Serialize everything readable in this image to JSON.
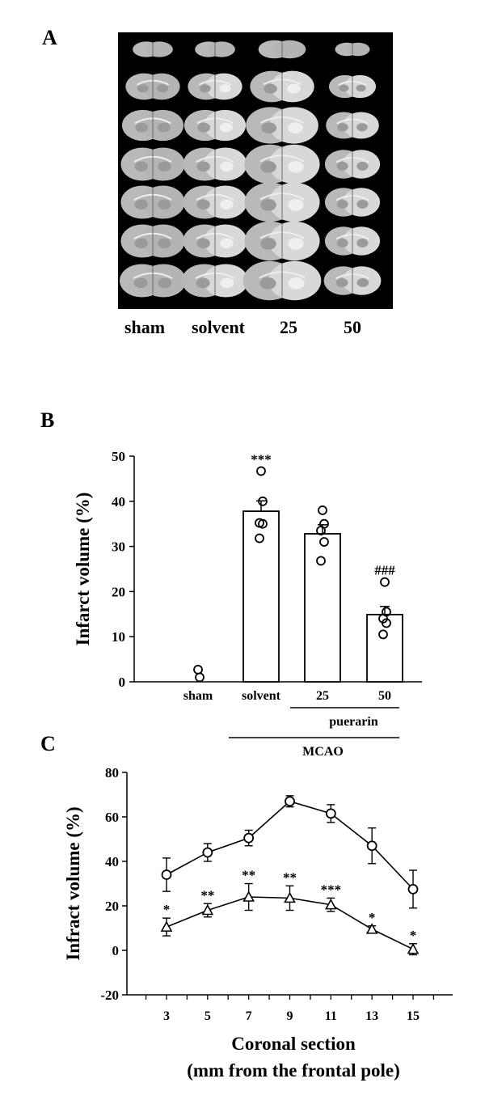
{
  "panel_labels": {
    "a": "A",
    "b": "B",
    "c": "C"
  },
  "panel_a": {
    "group_labels": [
      "sham",
      "solvent",
      "25",
      "50"
    ]
  },
  "chart_data": [
    {
      "type": "bar",
      "panel": "B",
      "ylabel": "Infarct volume (%)",
      "xlabel": "",
      "ylim": [
        0,
        50
      ],
      "yticks": [
        0,
        10,
        20,
        30,
        40,
        50
      ],
      "categories": [
        "sham",
        "solvent",
        "25",
        "50"
      ],
      "values": [
        0,
        37.8,
        32.8,
        14.9
      ],
      "errors": [
        0,
        2.3,
        2.0,
        1.8
      ],
      "points": [
        [
          2.7,
          1.0
        ],
        [
          46.7,
          40.0,
          35.2,
          35.0,
          31.8
        ],
        [
          38.0,
          35.0,
          33.5,
          31.0,
          26.8
        ],
        [
          22.1,
          15.5,
          14.0,
          13.0,
          10.5
        ]
      ],
      "annotations": [
        "",
        "***",
        "",
        "###"
      ],
      "group_brackets": [
        {
          "label": "puerarin",
          "span": [
            "25",
            "50"
          ]
        },
        {
          "label": "MCAO",
          "span": [
            "solvent",
            "50"
          ]
        }
      ],
      "bar_fill": "#ffffff",
      "bar_stroke": "#000000"
    },
    {
      "type": "line",
      "panel": "C",
      "xlabel": "Coronal section",
      "xlabel2": "(mm from the frontal  pole)",
      "ylabel": "Infract volume (%)",
      "ylim": [
        -20,
        80
      ],
      "yticks": [
        -20,
        0,
        20,
        40,
        60,
        80
      ],
      "x": [
        3,
        5,
        7,
        9,
        11,
        13,
        15
      ],
      "series": [
        {
          "marker": "circle",
          "values": [
            34,
            44,
            50.5,
            67,
            61.5,
            47,
            27.5
          ],
          "errors": [
            7.5,
            4,
            3.5,
            2.5,
            4,
            8,
            8.5
          ]
        },
        {
          "marker": "triangle",
          "values": [
            10.5,
            18,
            24,
            23.5,
            20.5,
            9.5,
            0.5
          ],
          "errors": [
            4,
            3,
            6,
            5.5,
            3,
            1.5,
            2.5
          ],
          "annotations": [
            "*",
            "**",
            "**",
            "**",
            "***",
            "*",
            "*"
          ]
        }
      ]
    }
  ]
}
